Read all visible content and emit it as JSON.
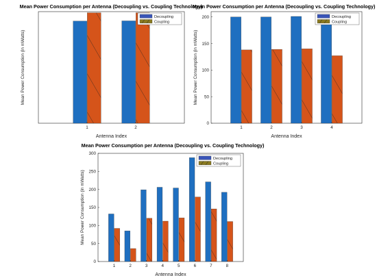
{
  "colors": {
    "decoupling": "#1f6fc0",
    "coupling": "#d5541a",
    "legend_decoupling": "#3a55b8",
    "legend_coupling": "#8a7a20",
    "hatch": "#222222"
  },
  "chart_data": [
    {
      "type": "bar",
      "title": "Mean Power Consumption per Antenna (Decoupling vs. Coupling Technology)",
      "xlabel": "Antenna Index",
      "ylabel": "Mean Power Consumption (in mWatts)",
      "categories": [
        "1",
        "2"
      ],
      "series": [
        {
          "name": "Decoupling",
          "values": [
            4760,
            4770
          ]
        },
        {
          "name": "Coupling",
          "values": [
            5150,
            5150
          ]
        }
      ],
      "ylim": [
        0,
        5200
      ],
      "yticks": [],
      "legend": "top-right",
      "grid": false
    },
    {
      "type": "bar",
      "title": "Mean Power Consumption per Antenna (Decoupling vs. Coupling Technology)",
      "xlabel": "Antenna Index",
      "ylabel": "Mean Power Consumption (in mWatts)",
      "categories": [
        "1",
        "2",
        "3",
        "4"
      ],
      "series": [
        {
          "name": "Decoupling",
          "values": [
            200,
            200,
            201,
            189
          ]
        },
        {
          "name": "Coupling",
          "values": [
            138,
            139,
            140,
            127
          ]
        }
      ],
      "ylim": [
        0,
        210
      ],
      "yticks": [
        0,
        50,
        100,
        150,
        200
      ],
      "legend": "top-right",
      "grid": false
    },
    {
      "type": "bar",
      "title": "Mean Power Consumption per Antenna (Decoupling vs. Coupling Technology)",
      "xlabel": "Antenna Index",
      "ylabel": "Mean Power Consumption (in mWatts)",
      "categories": [
        "1",
        "2",
        "3",
        "4",
        "5",
        "6",
        "7",
        "8"
      ],
      "series": [
        {
          "name": "Decoupling",
          "values": [
            132,
            85,
            199,
            206,
            204,
            288,
            221,
            192
          ]
        },
        {
          "name": "Coupling",
          "values": [
            92,
            36,
            120,
            112,
            121,
            179,
            146,
            111
          ]
        }
      ],
      "ylim": [
        0,
        300
      ],
      "yticks": [
        0,
        50,
        100,
        150,
        200,
        250,
        300
      ],
      "legend": "top-right",
      "grid": false
    }
  ]
}
